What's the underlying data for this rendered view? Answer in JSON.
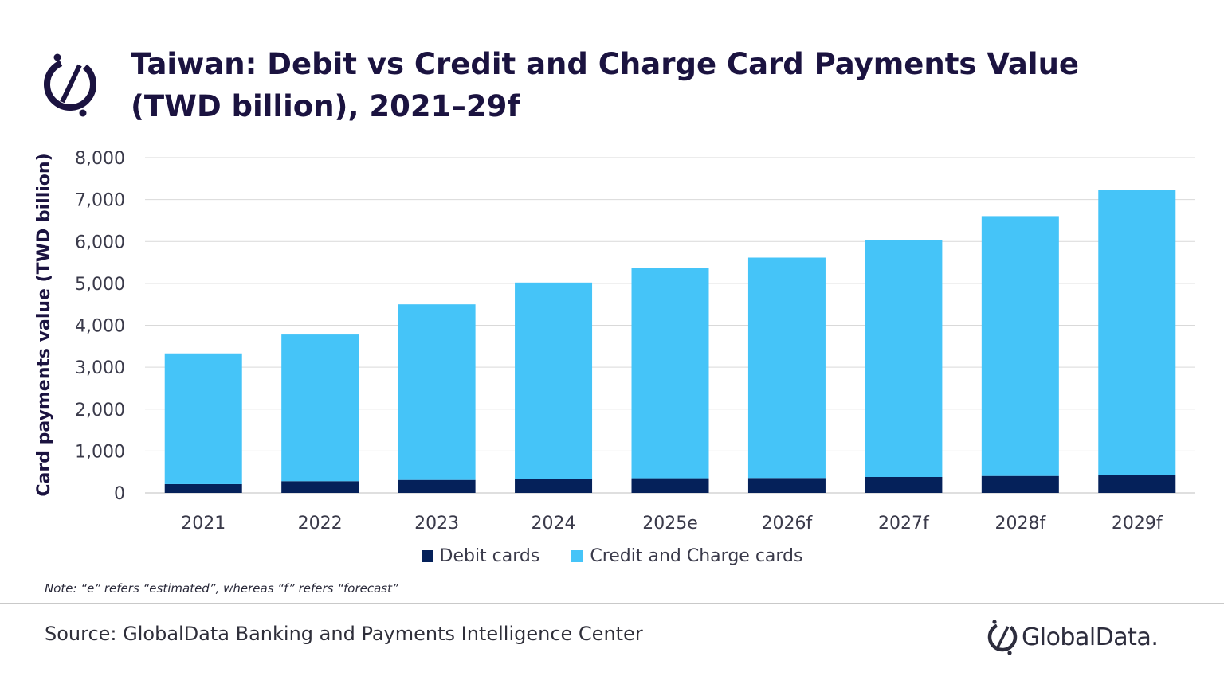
{
  "title": "Taiwan: Debit vs Credit and Charge Card Payments Value (TWD billion), 2021–29f",
  "note": "Note: “e” refers “estimated”, whereas “f” refers “forecast”",
  "source": "Source: GlobalData Banking and Payments Intelligence Center",
  "brand": {
    "name": "GlobalData."
  },
  "colors": {
    "debit": "#05215a",
    "credit": "#45c4f8",
    "title": "#1b1340",
    "grid": "#d9d9d9"
  },
  "chart_data": {
    "type": "bar",
    "stacked": true,
    "categories": [
      "2021",
      "2022",
      "2023",
      "2024",
      "2025e",
      "2026f",
      "2027f",
      "2028f",
      "2029f"
    ],
    "series": [
      {
        "name": "Debit cards",
        "values": [
          210,
          280,
          310,
          330,
          350,
          355,
          380,
          405,
          430
        ]
      },
      {
        "name": "Credit and Charge cards",
        "values": [
          3120,
          3500,
          4190,
          4690,
          5020,
          5260,
          5660,
          6200,
          6800
        ]
      }
    ],
    "ylabel": "Card payments value (TWD billion)",
    "xlabel": "",
    "ylim": [
      0,
      8000
    ],
    "yticks": [
      0,
      1000,
      2000,
      3000,
      4000,
      5000,
      6000,
      7000,
      8000
    ],
    "ytick_labels": [
      "0",
      "1,000",
      "2,000",
      "3,000",
      "4,000",
      "5,000",
      "6,000",
      "7,000",
      "8,000"
    ],
    "grid": true,
    "legend_position": "bottom"
  }
}
